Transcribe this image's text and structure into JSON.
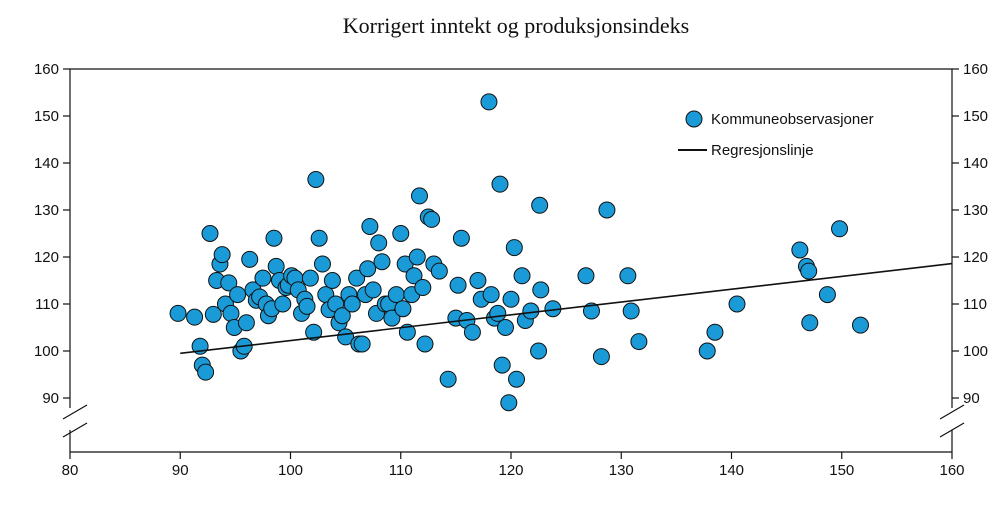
{
  "chart_data": {
    "type": "scatter",
    "title": "Korrigert inntekt og produksjonsindeks",
    "xlabel": "",
    "ylabel": "",
    "xlim": [
      80,
      160
    ],
    "ylim": [
      90,
      160
    ],
    "x_ticks": [
      "80",
      "90",
      "100",
      "110",
      "120",
      "130",
      "140",
      "150",
      "160"
    ],
    "y_ticks": [
      "90",
      "100",
      "110",
      "120",
      "130",
      "140",
      "150",
      "160"
    ],
    "axis_breaks": [
      "x-axis near 80",
      "y-axis below 90 (left and right)"
    ],
    "grid": false,
    "legend_position": "top-right",
    "point_color": "#1a9bd7",
    "line_color": "#111111",
    "series": [
      {
        "name": "Kommuneobservasjoner",
        "points": [
          [
            89.8,
            108
          ],
          [
            91.3,
            107.2
          ],
          [
            91.8,
            101
          ],
          [
            92.0,
            97
          ],
          [
            92.3,
            95.5
          ],
          [
            92.7,
            125
          ],
          [
            93.0,
            107.8
          ],
          [
            93.3,
            115
          ],
          [
            93.6,
            118.5
          ],
          [
            93.8,
            120.5
          ],
          [
            94.1,
            110
          ],
          [
            94.4,
            114.5
          ],
          [
            94.6,
            108
          ],
          [
            94.9,
            105
          ],
          [
            95.2,
            112
          ],
          [
            95.5,
            100
          ],
          [
            95.8,
            101
          ],
          [
            96.0,
            106
          ],
          [
            96.3,
            119.5
          ],
          [
            96.6,
            113
          ],
          [
            96.9,
            110.8
          ],
          [
            97.2,
            111.5
          ],
          [
            97.5,
            115.5
          ],
          [
            97.8,
            110
          ],
          [
            98.0,
            107.5
          ],
          [
            98.3,
            109
          ],
          [
            98.5,
            124
          ],
          [
            98.7,
            118
          ],
          [
            99.0,
            115
          ],
          [
            99.3,
            110
          ],
          [
            99.6,
            113.5
          ],
          [
            99.8,
            114
          ],
          [
            100.1,
            116
          ],
          [
            100.4,
            115.5
          ],
          [
            100.7,
            113
          ],
          [
            101.0,
            108
          ],
          [
            101.3,
            111
          ],
          [
            101.5,
            109.5
          ],
          [
            101.8,
            115.5
          ],
          [
            102.1,
            104
          ],
          [
            102.3,
            136.5
          ],
          [
            102.6,
            124
          ],
          [
            102.9,
            118.5
          ],
          [
            103.2,
            112
          ],
          [
            103.5,
            108.8
          ],
          [
            103.8,
            115
          ],
          [
            104.1,
            110
          ],
          [
            104.4,
            106
          ],
          [
            104.7,
            107.5
          ],
          [
            105.0,
            103
          ],
          [
            105.3,
            112
          ],
          [
            105.6,
            110
          ],
          [
            106.0,
            115.5
          ],
          [
            106.2,
            101.5
          ],
          [
            106.5,
            101.5
          ],
          [
            106.8,
            112
          ],
          [
            107.0,
            117.5
          ],
          [
            107.2,
            126.5
          ],
          [
            107.5,
            113
          ],
          [
            107.8,
            108
          ],
          [
            108.0,
            123
          ],
          [
            108.3,
            119
          ],
          [
            108.6,
            110
          ],
          [
            108.9,
            110
          ],
          [
            109.2,
            107
          ],
          [
            109.6,
            112
          ],
          [
            110.0,
            125
          ],
          [
            110.2,
            109
          ],
          [
            110.4,
            118.5
          ],
          [
            110.6,
            104
          ],
          [
            111.0,
            112
          ],
          [
            111.2,
            116
          ],
          [
            111.5,
            120
          ],
          [
            111.7,
            133
          ],
          [
            112.0,
            113.5
          ],
          [
            112.2,
            101.5
          ],
          [
            112.5,
            128.5
          ],
          [
            112.8,
            128
          ],
          [
            113.0,
            118.5
          ],
          [
            113.5,
            117
          ],
          [
            114.3,
            94
          ],
          [
            115.0,
            107
          ],
          [
            115.2,
            114
          ],
          [
            115.5,
            124
          ],
          [
            116.0,
            106.5
          ],
          [
            116.5,
            104
          ],
          [
            117.0,
            115
          ],
          [
            117.3,
            111
          ],
          [
            118.0,
            153
          ],
          [
            118.2,
            112
          ],
          [
            118.5,
            107
          ],
          [
            118.8,
            108
          ],
          [
            119.0,
            135.5
          ],
          [
            119.2,
            97
          ],
          [
            119.5,
            105
          ],
          [
            119.8,
            89
          ],
          [
            120.0,
            111
          ],
          [
            120.3,
            122
          ],
          [
            120.5,
            94
          ],
          [
            121.0,
            116
          ],
          [
            121.3,
            106.5
          ],
          [
            121.8,
            108.5
          ],
          [
            122.5,
            100
          ],
          [
            122.6,
            131
          ],
          [
            122.7,
            113
          ],
          [
            123.8,
            109
          ],
          [
            126.8,
            116
          ],
          [
            127.3,
            108.5
          ],
          [
            128.2,
            98.8
          ],
          [
            128.7,
            130
          ],
          [
            130.6,
            116
          ],
          [
            130.9,
            108.5
          ],
          [
            131.6,
            102
          ],
          [
            137.8,
            100
          ],
          [
            138.5,
            104
          ],
          [
            140.5,
            110
          ],
          [
            146.2,
            121.5
          ],
          [
            146.8,
            118
          ],
          [
            147.0,
            117
          ],
          [
            147.1,
            106
          ],
          [
            148.7,
            112
          ],
          [
            149.8,
            126
          ],
          [
            151.7,
            105.5
          ]
        ]
      },
      {
        "name": "Regresjonslinje",
        "line": [
          [
            90,
            99.5
          ],
          [
            160,
            118.6
          ]
        ]
      }
    ]
  }
}
